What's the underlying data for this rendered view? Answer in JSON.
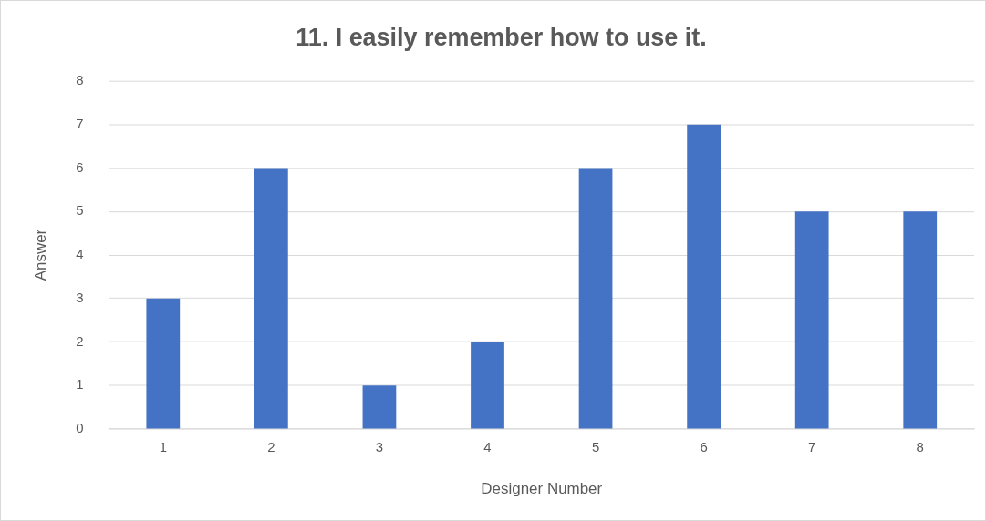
{
  "chart_data": {
    "type": "bar",
    "title": "11. I easily remember how to use it.",
    "xlabel": "Designer Number",
    "ylabel": "Answer",
    "categories": [
      "1",
      "2",
      "3",
      "4",
      "5",
      "6",
      "7",
      "8"
    ],
    "values": [
      3,
      6,
      1,
      2,
      6,
      7,
      5,
      5
    ],
    "color": "#4472c4",
    "ylim": [
      0,
      8
    ],
    "yticks": [
      0,
      1,
      2,
      3,
      4,
      5,
      6,
      7,
      8
    ],
    "grid": "y",
    "legend": false
  }
}
